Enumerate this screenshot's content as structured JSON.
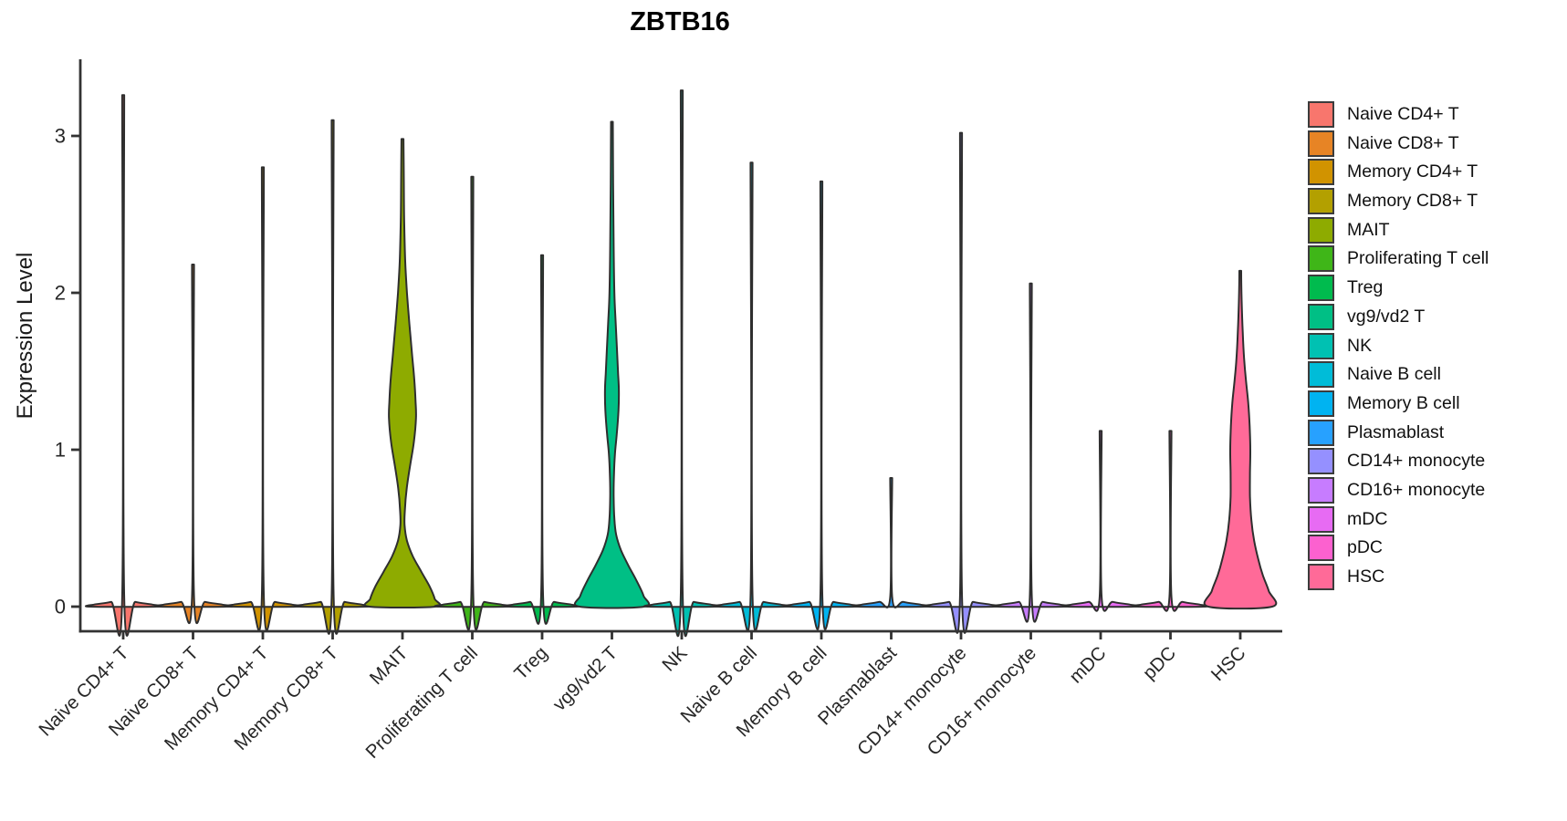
{
  "title": "ZBTB16",
  "chart_data": {
    "type": "violin",
    "title": "ZBTB16",
    "xlabel": "",
    "ylabel": "Expression Level",
    "ylim": [
      -0.16,
      3.5
    ],
    "y_ticks": [
      0,
      1,
      2,
      3
    ],
    "grid": "off",
    "legend_position": "right",
    "categories": [
      "Naive CD4+ T",
      "Naive CD8+ T",
      "Memory CD4+ T",
      "Memory CD8+ T",
      "MAIT",
      "Proliferating T cell",
      "Treg",
      "vg9/vd2 T",
      "NK",
      "Naive B cell",
      "Memory B cell",
      "Plasmablast",
      "CD14+ monocyte",
      "CD16+ monocyte",
      "mDC",
      "pDC",
      "HSC"
    ],
    "series": [
      {
        "name": "Naive CD4+ T",
        "color": "#F8766D",
        "max_expression": 3.26,
        "shape": "spike"
      },
      {
        "name": "Naive CD8+ T",
        "color": "#E78425",
        "max_expression": 2.18,
        "shape": "spike"
      },
      {
        "name": "Memory CD4+ T",
        "color": "#D19300",
        "max_expression": 2.8,
        "shape": "spike"
      },
      {
        "name": "Memory CD8+ T",
        "color": "#B3A000",
        "max_expression": 3.1,
        "shape": "spike"
      },
      {
        "name": "MAIT",
        "color": "#8EAB00",
        "max_expression": 2.98,
        "shape": "violin",
        "profile": [
          [
            2.98,
            0.03
          ],
          [
            2.7,
            0.04
          ],
          [
            2.45,
            0.05
          ],
          [
            2.2,
            0.08
          ],
          [
            2.0,
            0.13
          ],
          [
            1.8,
            0.2
          ],
          [
            1.6,
            0.28
          ],
          [
            1.45,
            0.34
          ],
          [
            1.3,
            0.38
          ],
          [
            1.2,
            0.39
          ],
          [
            1.05,
            0.33
          ],
          [
            0.9,
            0.22
          ],
          [
            0.75,
            0.12
          ],
          [
            0.62,
            0.07
          ],
          [
            0.52,
            0.06
          ],
          [
            0.42,
            0.13
          ],
          [
            0.32,
            0.3
          ],
          [
            0.22,
            0.55
          ],
          [
            0.13,
            0.78
          ],
          [
            0.05,
            0.93
          ],
          [
            0,
            0.95
          ]
        ]
      },
      {
        "name": "Proliferating T cell",
        "color": "#3FB618",
        "max_expression": 2.74,
        "shape": "spike"
      },
      {
        "name": "Treg",
        "color": "#00BB4E",
        "max_expression": 2.24,
        "shape": "spike"
      },
      {
        "name": "vg9/vd2 T",
        "color": "#00BF85",
        "max_expression": 3.09,
        "shape": "violin",
        "profile": [
          [
            3.09,
            0.025
          ],
          [
            2.7,
            0.035
          ],
          [
            2.3,
            0.05
          ],
          [
            2.0,
            0.07
          ],
          [
            1.8,
            0.11
          ],
          [
            1.62,
            0.15
          ],
          [
            1.48,
            0.18
          ],
          [
            1.38,
            0.2
          ],
          [
            1.25,
            0.19
          ],
          [
            1.1,
            0.14
          ],
          [
            0.98,
            0.09
          ],
          [
            0.85,
            0.06
          ],
          [
            0.7,
            0.05
          ],
          [
            0.56,
            0.07
          ],
          [
            0.46,
            0.12
          ],
          [
            0.36,
            0.26
          ],
          [
            0.26,
            0.48
          ],
          [
            0.17,
            0.7
          ],
          [
            0.07,
            0.91
          ],
          [
            0,
            0.93
          ]
        ]
      },
      {
        "name": "NK",
        "color": "#00C1B2",
        "max_expression": 3.29,
        "shape": "spike"
      },
      {
        "name": "Naive B cell",
        "color": "#00BCD8",
        "max_expression": 2.83,
        "shape": "spike"
      },
      {
        "name": "Memory B cell",
        "color": "#00B3F1",
        "max_expression": 2.71,
        "shape": "spike"
      },
      {
        "name": "Plasmablast",
        "color": "#27A1FF",
        "max_expression": 0.82,
        "shape": "spike"
      },
      {
        "name": "CD14+ monocyte",
        "color": "#9590FF",
        "max_expression": 3.02,
        "shape": "spike"
      },
      {
        "name": "CD16+ monocyte",
        "color": "#C77CFF",
        "max_expression": 2.06,
        "shape": "spike"
      },
      {
        "name": "mDC",
        "color": "#E76BF3",
        "max_expression": 1.12,
        "shape": "spike"
      },
      {
        "name": "pDC",
        "color": "#FC61CF",
        "max_expression": 1.12,
        "shape": "spike"
      },
      {
        "name": "HSC",
        "color": "#FF6A98",
        "max_expression": 2.14,
        "shape": "violin",
        "profile": [
          [
            2.14,
            0.025
          ],
          [
            1.95,
            0.04
          ],
          [
            1.75,
            0.07
          ],
          [
            1.58,
            0.11
          ],
          [
            1.45,
            0.16
          ],
          [
            1.3,
            0.23
          ],
          [
            1.15,
            0.27
          ],
          [
            1.0,
            0.29
          ],
          [
            0.85,
            0.28
          ],
          [
            0.7,
            0.28
          ],
          [
            0.55,
            0.32
          ],
          [
            0.42,
            0.4
          ],
          [
            0.3,
            0.52
          ],
          [
            0.2,
            0.65
          ],
          [
            0.1,
            0.82
          ],
          [
            0,
            0.92
          ]
        ]
      }
    ]
  },
  "legend": {
    "items": [
      "Naive CD4+ T",
      "Naive CD8+ T",
      "Memory CD4+ T",
      "Memory CD8+ T",
      "MAIT",
      "Proliferating T cell",
      "Treg",
      "vg9/vd2 T",
      "NK",
      "Naive B cell",
      "Memory B cell",
      "Plasmablast",
      "CD14+ monocyte",
      "CD16+ monocyte",
      "mDC",
      "pDC",
      "HSC"
    ]
  }
}
